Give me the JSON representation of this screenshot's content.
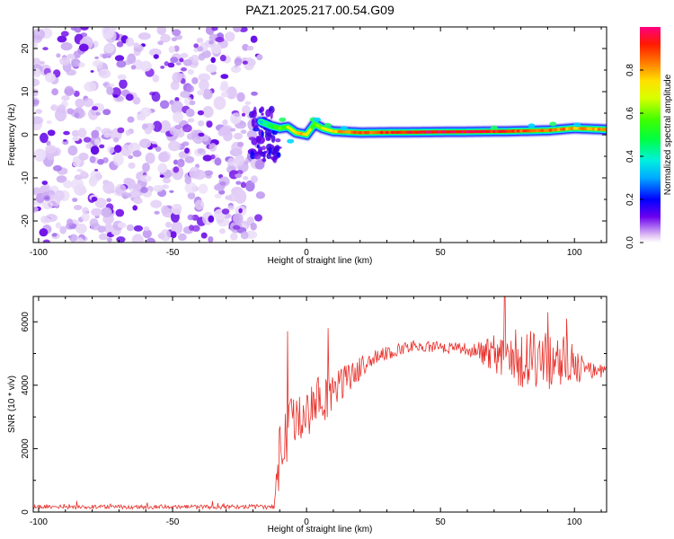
{
  "title": "PAZ1.2025.217.00.54.G09",
  "chart_data": [
    {
      "type": "heatmap",
      "name": "spectrogram",
      "xlabel": "Height of straight line (km)",
      "ylabel": "Frequency (Hz)",
      "xlim": [
        -102,
        112
      ],
      "ylim": [
        -25,
        25
      ],
      "xticks": [
        -100,
        -50,
        0,
        50,
        100
      ],
      "yticks": [
        -20,
        -10,
        0,
        10,
        20
      ],
      "colorbar": {
        "label": "Normalized spectral amplitude",
        "range": [
          0,
          1
        ],
        "ticks": [
          0.0,
          0.2,
          0.4,
          0.6,
          0.8
        ],
        "tick_labels": [
          "0.0",
          "0.2",
          "0.4",
          "0.6",
          "0.8"
        ]
      },
      "noise_region_x": [
        -102,
        -17
      ],
      "transition_x": [
        -21,
        -10
      ],
      "ridge": [
        {
          "x": -17,
          "y": 3.0,
          "amp": 0.35
        },
        {
          "x": -13,
          "y": 2.0,
          "amp": 0.5
        },
        {
          "x": -10,
          "y": 1.5,
          "amp": 0.55
        },
        {
          "x": -7,
          "y": 1.8,
          "amp": 0.6
        },
        {
          "x": -4,
          "y": 0.5,
          "amp": 0.75
        },
        {
          "x": 0,
          "y": 0.0,
          "amp": 0.8
        },
        {
          "x": 3,
          "y": 2.5,
          "amp": 0.55
        },
        {
          "x": 6,
          "y": 1.5,
          "amp": 0.65
        },
        {
          "x": 10,
          "y": 0.8,
          "amp": 0.75
        },
        {
          "x": 20,
          "y": 0.5,
          "amp": 0.85
        },
        {
          "x": 40,
          "y": 0.6,
          "amp": 0.95
        },
        {
          "x": 60,
          "y": 0.7,
          "amp": 0.95
        },
        {
          "x": 75,
          "y": 0.8,
          "amp": 0.9
        },
        {
          "x": 90,
          "y": 1.0,
          "amp": 0.85
        },
        {
          "x": 100,
          "y": 1.5,
          "amp": 0.8
        },
        {
          "x": 112,
          "y": 1.2,
          "amp": 0.8
        }
      ]
    },
    {
      "type": "line",
      "name": "snr",
      "xlabel": "Height of straight line (km)",
      "ylabel": "SNR (10 * v/v)",
      "xlim": [
        -102,
        112
      ],
      "ylim": [
        0,
        6800
      ],
      "xticks": [
        -100,
        -50,
        0,
        50,
        100
      ],
      "yticks": [
        0,
        2000,
        4000,
        6000
      ],
      "color": "#e8302a",
      "envelope": [
        {
          "x": -102,
          "mean": 160,
          "noise": 40
        },
        {
          "x": -30,
          "mean": 160,
          "noise": 40
        },
        {
          "x": -12,
          "mean": 170,
          "noise": 50
        },
        {
          "x": -10,
          "mean": 1800,
          "noise": 700
        },
        {
          "x": -5,
          "mean": 2900,
          "noise": 500
        },
        {
          "x": 5,
          "mean": 3500,
          "noise": 500
        },
        {
          "x": 15,
          "mean": 4200,
          "noise": 300
        },
        {
          "x": 25,
          "mean": 4900,
          "noise": 150
        },
        {
          "x": 40,
          "mean": 5250,
          "noise": 100
        },
        {
          "x": 60,
          "mean": 5150,
          "noise": 120
        },
        {
          "x": 70,
          "mean": 5000,
          "noise": 400
        },
        {
          "x": 80,
          "mean": 4900,
          "noise": 600
        },
        {
          "x": 95,
          "mean": 4700,
          "noise": 600
        },
        {
          "x": 105,
          "mean": 4500,
          "noise": 200
        },
        {
          "x": 112,
          "mean": 4400,
          "noise": 150
        }
      ],
      "peaks": [
        {
          "x": -7,
          "y": 5700
        },
        {
          "x": 8,
          "y": 5800
        },
        {
          "x": 74,
          "y": 6800
        },
        {
          "x": 90,
          "y": 6300
        },
        {
          "x": 97,
          "y": 6100
        }
      ]
    }
  ]
}
